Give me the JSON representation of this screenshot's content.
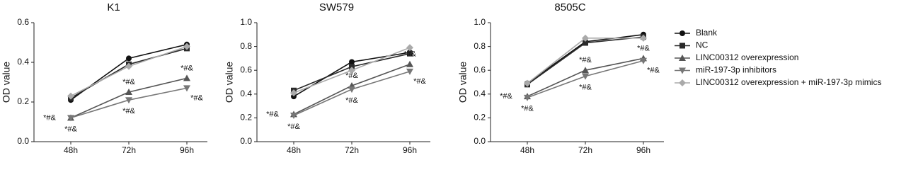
{
  "chart_data": [
    {
      "type": "line",
      "title": "K1",
      "y_label": "OD value",
      "categories": [
        "48h",
        "72h",
        "96h"
      ],
      "ylim": [
        0,
        0.6
      ],
      "yticks": [
        0,
        0.2,
        0.4,
        0.6
      ],
      "yticklabels": [
        "0.0",
        "0.2",
        "0.4",
        "0.6"
      ],
      "series": [
        {
          "values": [
            0.21,
            0.42,
            0.49
          ]
        },
        {
          "values": [
            0.22,
            0.39,
            0.47
          ]
        },
        {
          "values": [
            0.12,
            0.25,
            0.32
          ]
        },
        {
          "values": [
            0.12,
            0.21,
            0.27
          ]
        },
        {
          "values": [
            0.23,
            0.38,
            0.48
          ]
        }
      ],
      "annotations": [
        "*#&",
        "*#&",
        "*#&",
        "*#&",
        "*#&",
        "*#&"
      ]
    },
    {
      "type": "line",
      "title": "SW579",
      "y_label": "OD value",
      "categories": [
        "48h",
        "72h",
        "96h"
      ],
      "ylim": [
        0,
        1
      ],
      "yticks": [
        0,
        0.2,
        0.4,
        0.6,
        0.8,
        1
      ],
      "yticklabels": [
        "0.0",
        "0.2",
        "0.4",
        "0.6",
        "0.8",
        "1.0"
      ],
      "series": [
        {
          "values": [
            0.38,
            0.67,
            0.75
          ]
        },
        {
          "values": [
            0.43,
            0.63,
            0.74
          ]
        },
        {
          "values": [
            0.23,
            0.47,
            0.65
          ]
        },
        {
          "values": [
            0.22,
            0.44,
            0.59
          ]
        },
        {
          "values": [
            0.41,
            0.6,
            0.79
          ]
        }
      ],
      "annotations": [
        "*#&",
        "*#&",
        "*#&",
        "*#&",
        "*#&",
        "*#&"
      ]
    },
    {
      "type": "line",
      "title": "8505C",
      "y_label": "OD value",
      "categories": [
        "48h",
        "72h",
        "96h"
      ],
      "ylim": [
        0,
        1
      ],
      "yticks": [
        0,
        0.2,
        0.4,
        0.6,
        0.8,
        1
      ],
      "yticklabels": [
        "0.0",
        "0.2",
        "0.4",
        "0.6",
        "0.8",
        "1.0"
      ],
      "series": [
        {
          "values": [
            0.49,
            0.84,
            0.9
          ]
        },
        {
          "values": [
            0.48,
            0.83,
            0.88
          ]
        },
        {
          "values": [
            0.38,
            0.6,
            0.7
          ]
        },
        {
          "values": [
            0.37,
            0.55,
            0.68
          ]
        },
        {
          "values": [
            0.49,
            0.87,
            0.87
          ]
        }
      ],
      "annotations": [
        "*#&",
        "*#&",
        "*#&",
        "*#&",
        "*#&",
        "*#&"
      ]
    }
  ],
  "legend": {
    "entries": [
      {
        "name": "Blank",
        "color": "#111111",
        "marker": "circle"
      },
      {
        "name": "NC",
        "color": "#2a2a2a",
        "marker": "square"
      },
      {
        "name": "LINC00312 overexpression",
        "color": "#555555",
        "marker": "triangle-up"
      },
      {
        "name": "miR-197-3p inhibitors",
        "color": "#777777",
        "marker": "triangle-down"
      },
      {
        "name": "LINC00312 overexpression + miR-197-3p mimics",
        "color": "#aaaaaa",
        "marker": "diamond"
      }
    ]
  }
}
